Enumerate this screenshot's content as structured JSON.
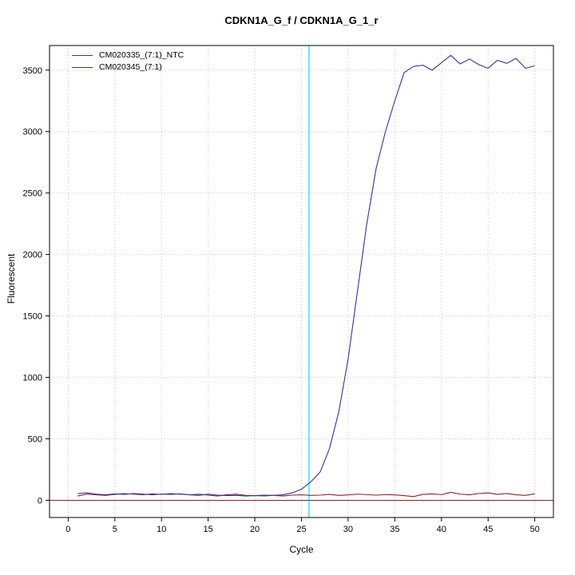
{
  "title": "CDKN1A_G_f / CDKN1A_G_1_r",
  "axes": {
    "x_label": "Cycle",
    "y_label": "Fluorescent"
  },
  "legend": {
    "items": [
      {
        "label": "CM020335_(7:1)_NTC",
        "color": "#8b2323"
      },
      {
        "label": "CM020345_(7:1)",
        "color": "#333399"
      }
    ]
  },
  "chart_data": {
    "type": "line",
    "title": "CDKN1A_G_f / CDKN1A_G_1_r",
    "xlabel": "Cycle",
    "ylabel": "Fluorescent",
    "xlim": [
      -2,
      52
    ],
    "ylim": [
      -140,
      3700
    ],
    "x_ticks": [
      0,
      5,
      10,
      15,
      20,
      25,
      30,
      35,
      40,
      45,
      50
    ],
    "y_ticks": [
      0,
      500,
      1000,
      1500,
      2000,
      2500,
      3000,
      3500
    ],
    "grid": "dotted",
    "grid_color": "#c3c3c3",
    "threshold_vline_x": 25.8,
    "threshold_vline_color": "#00e5ee",
    "threshold_hline_y": 0,
    "threshold_hline_color": "#8b2323",
    "x": [
      1,
      2,
      3,
      4,
      5,
      6,
      7,
      8,
      9,
      10,
      11,
      12,
      13,
      14,
      15,
      16,
      17,
      18,
      19,
      20,
      21,
      22,
      23,
      24,
      25,
      26,
      27,
      28,
      29,
      30,
      31,
      32,
      33,
      34,
      35,
      36,
      37,
      38,
      39,
      40,
      41,
      42,
      43,
      44,
      45,
      46,
      47,
      48,
      49,
      50
    ],
    "series": [
      {
        "name": "CM020335_(7:1)_NTC",
        "color": "#8b2323",
        "values": [
          35,
          50,
          45,
          40,
          48,
          55,
          50,
          45,
          52,
          48,
          55,
          50,
          45,
          50,
          42,
          35,
          45,
          50,
          40,
          38,
          42,
          40,
          35,
          42,
          45,
          40,
          42,
          48,
          40,
          44,
          50,
          46,
          42,
          46,
          44,
          38,
          30,
          48,
          52,
          46,
          65,
          50,
          45,
          55,
          60,
          48,
          55,
          45,
          40,
          52
        ]
      },
      {
        "name": "CM020345_(7:1)",
        "color": "#333399",
        "values": [
          55,
          60,
          50,
          45,
          52,
          48,
          55,
          50,
          45,
          50,
          48,
          52,
          45,
          40,
          50,
          42,
          38,
          40,
          35,
          38,
          36,
          40,
          45,
          60,
          90,
          150,
          230,
          420,
          720,
          1150,
          1700,
          2250,
          2700,
          3000,
          3250,
          3480,
          3530,
          3540,
          3500,
          3560,
          3620,
          3550,
          3590,
          3545,
          3515,
          3580,
          3555,
          3595,
          3515,
          3535
        ]
      }
    ]
  }
}
